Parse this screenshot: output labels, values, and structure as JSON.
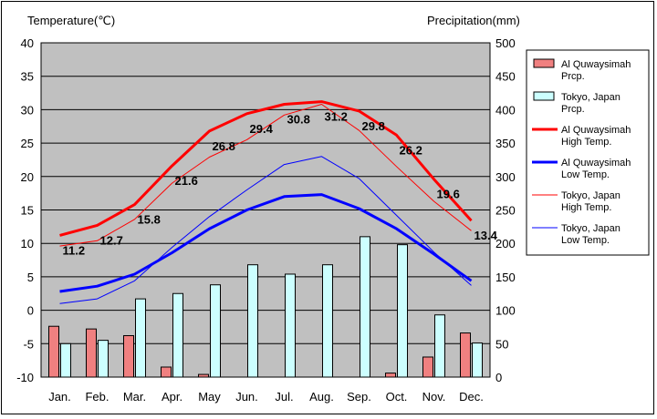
{
  "chart_data": {
    "type": "bar+line",
    "y_left_label": "Temperature(℃)",
    "y_right_label": "Precipitation(mm)",
    "ylim_left": [
      -10,
      40
    ],
    "ylim_right": [
      0,
      500
    ],
    "left_ticks": [
      "40",
      "35",
      "30",
      "25",
      "20",
      "15",
      "10",
      "5",
      "0",
      "-5",
      "-10"
    ],
    "right_ticks": [
      "500",
      "450",
      "400",
      "350",
      "300",
      "250",
      "200",
      "150",
      "100",
      "50",
      "0"
    ],
    "categories": [
      "Jan.",
      "Feb.",
      "Mar.",
      "Apr.",
      "May",
      "Jun.",
      "Jul.",
      "Aug.",
      "Sep.",
      "Oct.",
      "Nov.",
      "Dec."
    ],
    "grid": true,
    "legend_position": "right",
    "bars": [
      {
        "name": "Al Quwaysimah\nPrcp.",
        "color": "#f08080",
        "values": [
          76,
          72,
          62,
          15,
          4,
          0,
          0,
          0,
          0,
          6,
          30,
          66
        ]
      },
      {
        "name": "Tokyo, Japan\nPrcp.",
        "color": "#ccffff",
        "values": [
          50,
          55,
          117,
          125,
          138,
          168,
          154,
          168,
          210,
          198,
          93,
          51
        ]
      }
    ],
    "lines": [
      {
        "name": "Al Quwaysimah\nHigh Temp.",
        "color": "#ff0000",
        "width": 3,
        "values": [
          11.2,
          12.7,
          15.8,
          21.6,
          26.8,
          29.4,
          30.8,
          31.2,
          29.8,
          26.2,
          19.6,
          13.4
        ]
      },
      {
        "name": "Al Quwaysimah\nLow Temp.",
        "color": "#0000ff",
        "width": 3,
        "values": [
          2.8,
          3.6,
          5.4,
          8.6,
          12.2,
          15.0,
          17.0,
          17.3,
          15.2,
          12.2,
          8.4,
          4.4
        ]
      },
      {
        "name": "Tokyo, Japan\nHigh Temp.",
        "color": "#ff0000",
        "width": 1,
        "values": [
          9.6,
          10.4,
          13.6,
          19.0,
          22.9,
          25.5,
          29.2,
          30.8,
          26.9,
          21.5,
          16.3,
          11.9
        ]
      },
      {
        "name": "Tokyo, Japan\nLow Temp.",
        "color": "#0000ff",
        "width": 1,
        "values": [
          1.0,
          1.7,
          4.4,
          9.4,
          14.0,
          18.0,
          21.8,
          23.0,
          19.7,
          14.2,
          8.7,
          3.7
        ]
      }
    ],
    "data_labels": [
      "11.2",
      "12.7",
      "15.8",
      "21.6",
      "26.8",
      "29.4",
      "30.8",
      "31.2",
      "29.8",
      "26.2",
      "19.6",
      "13.4"
    ]
  }
}
